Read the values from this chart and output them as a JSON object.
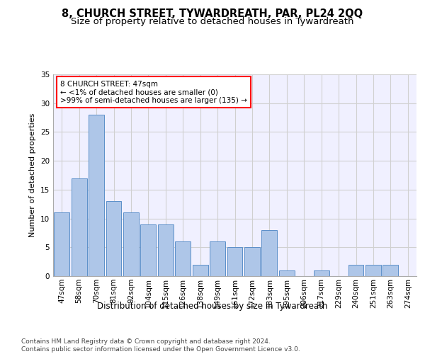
{
  "title": "8, CHURCH STREET, TYWARDREATH, PAR, PL24 2QQ",
  "subtitle": "Size of property relative to detached houses in Tywardreath",
  "xlabel": "Distribution of detached houses by size in Tywardreath",
  "ylabel": "Number of detached properties",
  "categories": [
    "47sqm",
    "58sqm",
    "70sqm",
    "81sqm",
    "92sqm",
    "104sqm",
    "115sqm",
    "126sqm",
    "138sqm",
    "149sqm",
    "161sqm",
    "172sqm",
    "183sqm",
    "195sqm",
    "206sqm",
    "217sqm",
    "229sqm",
    "240sqm",
    "251sqm",
    "263sqm",
    "274sqm"
  ],
  "values": [
    11,
    17,
    28,
    13,
    11,
    9,
    9,
    6,
    2,
    6,
    5,
    5,
    8,
    1,
    0,
    1,
    0,
    2,
    2,
    2,
    0
  ],
  "bar_color": "#aec6e8",
  "bar_edge_color": "#5b8fc9",
  "annotation_lines": [
    "8 CHURCH STREET: 47sqm",
    "← <1% of detached houses are smaller (0)",
    ">99% of semi-detached houses are larger (135) →"
  ],
  "ylim": [
    0,
    35
  ],
  "yticks": [
    0,
    5,
    10,
    15,
    20,
    25,
    30,
    35
  ],
  "grid_color": "#d0d0d0",
  "background_color": "#f0f0ff",
  "footer_text": "Contains HM Land Registry data © Crown copyright and database right 2024.\nContains public sector information licensed under the Open Government Licence v3.0.",
  "title_fontsize": 10.5,
  "subtitle_fontsize": 9.5,
  "xlabel_fontsize": 8.5,
  "ylabel_fontsize": 8,
  "tick_fontsize": 7.5,
  "annotation_fontsize": 7.5,
  "footer_fontsize": 6.5
}
